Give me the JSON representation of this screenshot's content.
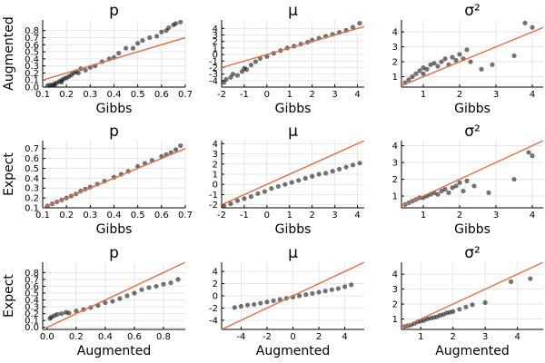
{
  "colors": {
    "points": "#000000",
    "line": "#e26f46",
    "grid": "#e6e6e6"
  },
  "chart_data": [
    {
      "type": "scatter",
      "title": "p",
      "xlabel": "Gibbs",
      "ylabel": "Augmented",
      "xlim": [
        0.1,
        0.7
      ],
      "ylim": [
        0.0,
        0.95
      ],
      "xticks": [
        0.1,
        0.2,
        0.3,
        0.4,
        0.5,
        0.6,
        0.7
      ],
      "xtick_labels": [
        "0.1",
        "0.2",
        "0.3",
        "0.4",
        "0.5",
        "0.6",
        "0.7"
      ],
      "yticks": [
        0.0,
        0.1,
        0.2,
        0.3,
        0.4,
        0.5,
        0.6,
        0.7,
        0.8
      ],
      "ytick_labels": [
        "0.0",
        "0.1",
        "0.2",
        "0.3",
        "0.4",
        "0.5",
        "0.6",
        "0.7",
        "0.8"
      ],
      "line": {
        "x": [
          0.1,
          0.7
        ],
        "y": [
          0.1,
          0.7
        ]
      },
      "points": {
        "x": [
          0.12,
          0.13,
          0.14,
          0.15,
          0.15,
          0.16,
          0.17,
          0.18,
          0.18,
          0.19,
          0.2,
          0.21,
          0.22,
          0.23,
          0.24,
          0.25,
          0.26,
          0.28,
          0.3,
          0.32,
          0.35,
          0.38,
          0.4,
          0.42,
          0.45,
          0.48,
          0.5,
          0.52,
          0.55,
          0.58,
          0.6,
          0.62,
          0.63,
          0.65,
          0.66,
          0.68
        ],
        "y": [
          0.02,
          0.03,
          0.03,
          0.05,
          0.02,
          0.06,
          0.08,
          0.1,
          0.07,
          0.12,
          0.13,
          0.15,
          0.17,
          0.2,
          0.22,
          0.2,
          0.26,
          0.24,
          0.28,
          0.3,
          0.36,
          0.4,
          0.42,
          0.48,
          0.55,
          0.55,
          0.62,
          0.66,
          0.7,
          0.72,
          0.78,
          0.8,
          0.84,
          0.88,
          0.9,
          0.92
        ]
      }
    },
    {
      "type": "scatter",
      "title": "μ",
      "xlabel": "Gibbs",
      "ylabel": "",
      "xlim": [
        -2,
        4.3
      ],
      "ylim": [
        -5,
        5.3
      ],
      "xticks": [
        -2,
        -1,
        0,
        1,
        2,
        3,
        4
      ],
      "xtick_labels": [
        "-2",
        "-1",
        "0",
        "1",
        "2",
        "3",
        "4"
      ],
      "yticks": [
        -4,
        -3,
        -2,
        -1,
        0,
        1,
        2,
        3,
        4
      ],
      "ytick_labels": [
        "-4",
        "-3",
        "-2",
        "-1",
        "0",
        "1",
        "2",
        "3",
        "4"
      ],
      "line": {
        "x": [
          -2,
          4.3
        ],
        "y": [
          -2,
          4.3
        ]
      },
      "points": {
        "x": [
          -1.9,
          -1.8,
          -1.6,
          -1.5,
          -1.3,
          -1.1,
          -1.0,
          -0.9,
          -0.7,
          -0.5,
          -0.3,
          0.0,
          0.3,
          0.6,
          0.9,
          1.2,
          1.5,
          1.8,
          2.0,
          2.3,
          2.6,
          2.9,
          3.2,
          3.5,
          3.8,
          4.1
        ],
        "y": [
          -4.3,
          -3.8,
          -3.5,
          -3.0,
          -3.2,
          -2.6,
          -2.1,
          -2.3,
          -1.6,
          -1.1,
          -0.6,
          -0.3,
          0.2,
          0.6,
          1.0,
          1.3,
          1.6,
          1.9,
          2.2,
          2.5,
          2.8,
          3.1,
          3.4,
          3.7,
          4.2,
          4.8
        ]
      }
    },
    {
      "type": "scatter",
      "title": "σ²",
      "xlabel": "Gibbs",
      "ylabel": "",
      "xlim": [
        0.4,
        4.3
      ],
      "ylim": [
        0.3,
        4.8
      ],
      "xticks": [
        1,
        2,
        3,
        4
      ],
      "xtick_labels": [
        "1",
        "2",
        "3",
        "4"
      ],
      "yticks": [
        1,
        2,
        3,
        4
      ],
      "ytick_labels": [
        "1",
        "2",
        "3",
        "4"
      ],
      "line": {
        "x": [
          0.4,
          4.3
        ],
        "y": [
          0.4,
          4.3
        ]
      },
      "points": {
        "x": [
          0.5,
          0.6,
          0.7,
          0.8,
          0.9,
          1.0,
          1.0,
          1.1,
          1.2,
          1.3,
          1.4,
          1.5,
          1.6,
          1.7,
          1.8,
          1.9,
          2.0,
          2.1,
          2.2,
          2.3,
          2.6,
          2.9,
          3.5,
          3.8,
          4.0
        ],
        "y": [
          0.6,
          0.8,
          1.0,
          1.2,
          1.4,
          1.2,
          1.6,
          1.5,
          1.8,
          1.9,
          1.7,
          2.0,
          2.2,
          1.8,
          2.3,
          2.1,
          2.5,
          2.2,
          2.8,
          2.0,
          1.5,
          1.8,
          2.4,
          4.6,
          4.3
        ]
      }
    },
    {
      "type": "scatter",
      "title": "p",
      "xlabel": "Gibbs",
      "ylabel": "Expect",
      "xlim": [
        0.1,
        0.7
      ],
      "ylim": [
        0.1,
        0.78
      ],
      "xticks": [
        0.1,
        0.2,
        0.3,
        0.4,
        0.5,
        0.6,
        0.7
      ],
      "xtick_labels": [
        "0.1",
        "0.2",
        "0.3",
        "0.4",
        "0.5",
        "0.6",
        "0.7"
      ],
      "yticks": [
        0.1,
        0.2,
        0.3,
        0.4,
        0.5,
        0.6,
        0.7
      ],
      "ytick_labels": [
        "0.1",
        "0.2",
        "0.3",
        "0.4",
        "0.5",
        "0.6",
        "0.7"
      ],
      "line": {
        "x": [
          0.1,
          0.7
        ],
        "y": [
          0.1,
          0.7
        ]
      },
      "points": {
        "x": [
          0.12,
          0.14,
          0.16,
          0.18,
          0.2,
          0.22,
          0.24,
          0.26,
          0.28,
          0.3,
          0.33,
          0.36,
          0.4,
          0.43,
          0.46,
          0.5,
          0.53,
          0.56,
          0.6,
          0.62,
          0.64,
          0.66,
          0.68
        ],
        "y": [
          0.12,
          0.14,
          0.16,
          0.18,
          0.2,
          0.22,
          0.24,
          0.27,
          0.29,
          0.31,
          0.34,
          0.37,
          0.41,
          0.44,
          0.47,
          0.52,
          0.55,
          0.58,
          0.62,
          0.64,
          0.66,
          0.69,
          0.73
        ]
      }
    },
    {
      "type": "scatter",
      "title": "μ",
      "xlabel": "Gibbs",
      "ylabel": "",
      "xlim": [
        -2,
        4.3
      ],
      "ylim": [
        -2.3,
        4.3
      ],
      "xticks": [
        -2,
        -1,
        0,
        1,
        2,
        3,
        4
      ],
      "xtick_labels": [
        "-2",
        "-1",
        "0",
        "1",
        "2",
        "3",
        "4"
      ],
      "yticks": [
        -2,
        -1,
        0,
        1,
        2,
        3,
        4
      ],
      "ytick_labels": [
        "-2",
        "-1",
        "0",
        "1",
        "2",
        "3",
        "4"
      ],
      "line": {
        "x": [
          -2,
          4.3
        ],
        "y": [
          -2,
          4.3
        ]
      },
      "points": {
        "x": [
          -1.9,
          -1.6,
          -1.3,
          -1.0,
          -0.7,
          -0.4,
          -0.1,
          0.2,
          0.5,
          0.8,
          1.1,
          1.4,
          1.7,
          2.0,
          2.3,
          2.6,
          2.9,
          3.2,
          3.5,
          3.8,
          4.1
        ],
        "y": [
          -2.1,
          -1.9,
          -1.6,
          -1.4,
          -1.2,
          -0.9,
          -0.7,
          -0.4,
          -0.2,
          0.0,
          0.2,
          0.4,
          0.6,
          0.8,
          1.0,
          1.1,
          1.3,
          1.5,
          1.7,
          1.9,
          2.1
        ]
      }
    },
    {
      "type": "scatter",
      "title": "σ²",
      "xlabel": "Gibbs",
      "ylabel": "",
      "xlim": [
        0.4,
        4.3
      ],
      "ylim": [
        0.3,
        4.3
      ],
      "xticks": [
        1,
        2,
        3,
        4
      ],
      "xtick_labels": [
        "1",
        "2",
        "3",
        "4"
      ],
      "yticks": [
        1,
        2,
        3,
        4
      ],
      "ytick_labels": [
        "1",
        "2",
        "3",
        "4"
      ],
      "line": {
        "x": [
          0.4,
          4.3
        ],
        "y": [
          0.4,
          4.3
        ]
      },
      "points": {
        "x": [
          0.5,
          0.6,
          0.7,
          0.8,
          0.9,
          1.0,
          1.1,
          1.2,
          1.3,
          1.4,
          1.5,
          1.6,
          1.7,
          1.8,
          1.9,
          2.0,
          2.1,
          2.2,
          2.4,
          2.8,
          3.5,
          3.9,
          4.0
        ],
        "y": [
          0.5,
          0.6,
          0.7,
          0.8,
          0.9,
          0.9,
          1.0,
          1.1,
          1.2,
          1.1,
          1.3,
          1.4,
          1.2,
          1.5,
          1.6,
          1.8,
          1.3,
          1.9,
          1.6,
          1.2,
          2.0,
          3.6,
          3.4
        ]
      }
    },
    {
      "type": "scatter",
      "title": "p",
      "xlabel": "Augmented",
      "ylabel": "Expect",
      "xlim": [
        -0.03,
        0.95
      ],
      "ylim": [
        -0.03,
        0.95
      ],
      "xticks": [
        0.0,
        0.2,
        0.4,
        0.6,
        0.8
      ],
      "xtick_labels": [
        "0.0",
        "0.2",
        "0.4",
        "0.6",
        "0.8"
      ],
      "yticks": [
        0.0,
        0.1,
        0.2,
        0.3,
        0.4,
        0.5,
        0.6,
        0.7,
        0.8
      ],
      "ytick_labels": [
        "0.0",
        "0.1",
        "0.2",
        "0.3",
        "0.4",
        "0.5",
        "0.6",
        "0.7",
        "0.8"
      ],
      "line": {
        "x": [
          0.0,
          0.95
        ],
        "y": [
          0.0,
          0.95
        ]
      },
      "points": {
        "x": [
          0.02,
          0.03,
          0.05,
          0.07,
          0.1,
          0.13,
          0.15,
          0.2,
          0.25,
          0.3,
          0.35,
          0.4,
          0.45,
          0.5,
          0.55,
          0.6,
          0.65,
          0.7,
          0.75,
          0.8,
          0.85,
          0.9
        ],
        "y": [
          0.13,
          0.15,
          0.17,
          0.19,
          0.2,
          0.22,
          0.21,
          0.24,
          0.26,
          0.29,
          0.32,
          0.36,
          0.38,
          0.42,
          0.46,
          0.5,
          0.55,
          0.58,
          0.6,
          0.63,
          0.65,
          0.7
        ]
      }
    },
    {
      "type": "scatter",
      "title": "μ",
      "xlabel": "Augmented",
      "ylabel": "",
      "xlim": [
        -5.5,
        5.5
      ],
      "ylim": [
        -5.5,
        5.5
      ],
      "xticks": [
        -4,
        -2,
        0,
        2,
        4
      ],
      "xtick_labels": [
        "-4",
        "-2",
        "0",
        "2",
        "4"
      ],
      "yticks": [
        -4,
        -2,
        0,
        2,
        4
      ],
      "ytick_labels": [
        "-4",
        "-2",
        "0",
        "2",
        "4"
      ],
      "line": {
        "x": [
          -5.5,
          5.5
        ],
        "y": [
          -5.5,
          5.5
        ]
      },
      "points": {
        "x": [
          -4.5,
          -4.0,
          -3.5,
          -3.0,
          -2.5,
          -2.0,
          -1.5,
          -1.0,
          -0.5,
          0.0,
          0.5,
          1.0,
          1.5,
          2.0,
          2.5,
          3.0,
          3.5,
          4.0,
          4.5
        ],
        "y": [
          -1.9,
          -1.7,
          -1.5,
          -1.4,
          -1.2,
          -1.0,
          -0.8,
          -0.6,
          -0.4,
          -0.2,
          0.0,
          0.2,
          0.4,
          0.6,
          0.8,
          1.0,
          1.2,
          1.5,
          1.8
        ]
      }
    },
    {
      "type": "scatter",
      "title": "σ²",
      "xlabel": "Augmented",
      "ylabel": "",
      "xlim": [
        0.4,
        4.8
      ],
      "ylim": [
        0.3,
        4.8
      ],
      "xticks": [
        1,
        2,
        3,
        4
      ],
      "xtick_labels": [
        "1",
        "2",
        "3",
        "4"
      ],
      "yticks": [
        1,
        2,
        3,
        4
      ],
      "ytick_labels": [
        "1",
        "2",
        "3",
        "4"
      ],
      "line": {
        "x": [
          0.4,
          4.8
        ],
        "y": [
          0.4,
          4.8
        ]
      },
      "points": {
        "x": [
          0.5,
          0.6,
          0.7,
          0.8,
          0.9,
          1.0,
          1.1,
          1.2,
          1.3,
          1.4,
          1.5,
          1.6,
          1.7,
          1.8,
          1.9,
          2.0,
          2.2,
          2.4,
          2.6,
          3.0,
          3.8,
          4.4
        ],
        "y": [
          0.5,
          0.55,
          0.6,
          0.7,
          0.8,
          0.85,
          0.9,
          1.0,
          1.05,
          1.1,
          1.15,
          1.25,
          1.3,
          1.4,
          1.45,
          1.5,
          1.65,
          1.8,
          1.95,
          2.1,
          3.5,
          3.7
        ]
      }
    }
  ]
}
